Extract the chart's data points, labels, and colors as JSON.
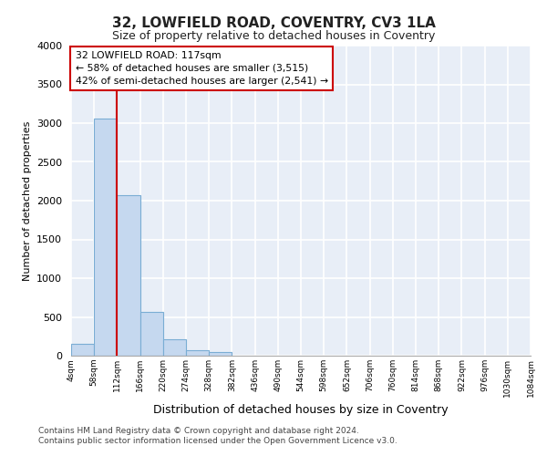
{
  "title": "32, LOWFIELD ROAD, COVENTRY, CV3 1LA",
  "subtitle": "Size of property relative to detached houses in Coventry",
  "xlabel": "Distribution of detached houses by size in Coventry",
  "ylabel": "Number of detached properties",
  "bar_color": "#c5d8ef",
  "bar_edge_color": "#7aadd4",
  "background_color": "#e8eef7",
  "grid_color": "#ffffff",
  "annotation_box_color": "#cc0000",
  "vline_color": "#cc0000",
  "vline_x_index": 2,
  "annotation_text": "32 LOWFIELD ROAD: 117sqm\n← 58% of detached houses are smaller (3,515)\n42% of semi-detached houses are larger (2,541) →",
  "bin_edges": [
    4,
    58,
    112,
    166,
    220,
    274,
    328,
    382,
    436,
    490,
    544,
    598,
    652,
    706,
    760,
    814,
    868,
    922,
    976,
    1030,
    1084
  ],
  "bin_labels": [
    "4sqm",
    "58sqm",
    "112sqm",
    "166sqm",
    "220sqm",
    "274sqm",
    "328sqm",
    "382sqm",
    "436sqm",
    "490sqm",
    "544sqm",
    "598sqm",
    "652sqm",
    "706sqm",
    "760sqm",
    "814sqm",
    "868sqm",
    "922sqm",
    "976sqm",
    "1030sqm",
    "1084sqm"
  ],
  "counts": [
    150,
    3060,
    2070,
    570,
    210,
    75,
    50,
    0,
    0,
    0,
    0,
    0,
    0,
    0,
    0,
    0,
    0,
    0,
    0,
    0
  ],
  "ylim": [
    0,
    4000
  ],
  "yticks": [
    0,
    500,
    1000,
    1500,
    2000,
    2500,
    3000,
    3500,
    4000
  ],
  "footer_line1": "Contains HM Land Registry data © Crown copyright and database right 2024.",
  "footer_line2": "Contains public sector information licensed under the Open Government Licence v3.0."
}
